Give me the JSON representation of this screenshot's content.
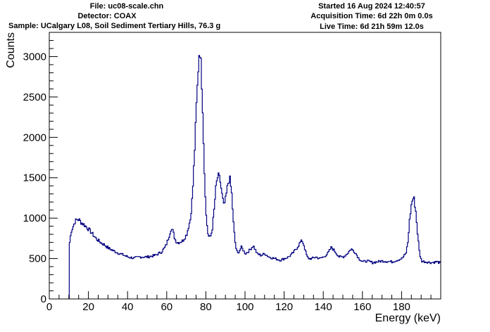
{
  "header": {
    "file": "File: uc08-scale.chn",
    "detector": "Detector: COAX",
    "sample": "Sample: UCalgary L08, Soil Sediment Tertiary Hills, 76.3 g",
    "started": "Started 16 Aug 2024 12:40:57",
    "acquisition": "Acquisition Time: 6d 22h 0m 0.0s",
    "live": "Live Time: 6d 21h 59m 12.0s"
  },
  "colors": {
    "line": "#000080",
    "axis": "#000000"
  },
  "chart_data": {
    "type": "line",
    "title": "",
    "xlabel": "Energy (keV)",
    "ylabel": "Counts",
    "xlim": [
      0,
      200
    ],
    "ylim": [
      0,
      3300
    ],
    "x_ticks": [
      0,
      20,
      40,
      60,
      80,
      100,
      120,
      140,
      160,
      180
    ],
    "y_ticks": [
      0,
      500,
      1000,
      1500,
      2000,
      2500,
      3000
    ],
    "grid": false,
    "legend": "none",
    "series": [
      {
        "x": [
          10.2,
          11,
          12,
          13,
          14,
          15,
          16,
          18,
          20,
          22,
          24,
          26,
          28,
          30,
          33,
          36,
          40,
          43,
          46,
          50,
          54,
          57,
          59,
          60,
          61,
          62,
          63,
          64,
          65,
          66,
          68,
          70,
          72,
          73,
          74,
          75,
          76,
          76.5,
          77,
          78,
          79,
          80,
          81,
          82,
          83,
          84,
          85,
          86,
          87,
          88,
          89,
          90,
          91,
          92,
          93,
          94,
          95,
          96,
          98,
          100,
          102,
          104,
          106,
          108,
          110,
          112,
          115,
          118,
          120,
          122,
          124,
          126,
          128,
          129,
          130,
          131,
          132,
          134,
          136,
          138,
          140,
          142,
          144,
          146,
          148,
          150,
          152,
          154,
          156,
          158,
          160,
          162,
          165,
          170,
          175,
          180,
          182,
          183,
          184,
          185,
          186,
          187,
          188,
          189,
          190,
          192,
          195,
          198,
          200
        ],
        "y": [
          700,
          840,
          900,
          960,
          985,
          980,
          950,
          910,
          860,
          800,
          740,
          700,
          670,
          630,
          590,
          560,
          520,
          505,
          520,
          520,
          540,
          580,
          640,
          700,
          780,
          870,
          840,
          740,
          700,
          700,
          720,
          800,
          1000,
          1300,
          1800,
          2400,
          2900,
          3100,
          3050,
          2500,
          1600,
          1000,
          780,
          760,
          850,
          1100,
          1400,
          1530,
          1480,
          1300,
          1150,
          1250,
          1420,
          1500,
          1300,
          900,
          650,
          560,
          640,
          560,
          600,
          660,
          560,
          540,
          560,
          520,
          500,
          480,
          500,
          520,
          560,
          620,
          700,
          720,
          660,
          560,
          500,
          500,
          520,
          500,
          520,
          560,
          640,
          580,
          520,
          520,
          560,
          620,
          580,
          500,
          460,
          470,
          450,
          470,
          460,
          500,
          560,
          700,
          1000,
          1200,
          1260,
          1100,
          800,
          560,
          470,
          460,
          450,
          460,
          440
        ]
      }
    ]
  },
  "axes_text": {
    "x_tick_labels": [
      "0",
      "20",
      "40",
      "60",
      "80",
      "100",
      "120",
      "140",
      "160",
      "180"
    ],
    "y_tick_labels": [
      "0",
      "500",
      "1000",
      "1500",
      "2000",
      "2500",
      "3000"
    ],
    "xlabel": "Energy (keV)",
    "ylabel": "Counts"
  }
}
